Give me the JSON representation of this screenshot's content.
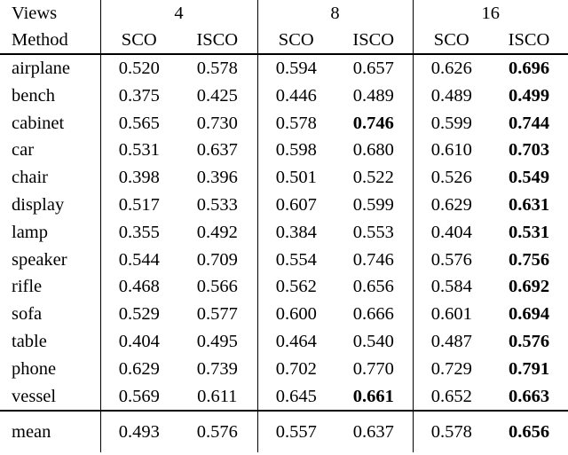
{
  "table": {
    "header": {
      "views_label": "Views",
      "method_label": "Method",
      "groups": [
        "4",
        "8",
        "16"
      ],
      "sub_labels": [
        "SCO",
        "ISCO",
        "SCO",
        "ISCO",
        "SCO",
        "ISCO"
      ]
    },
    "rows": [
      {
        "method": "airplane",
        "values": [
          "0.520",
          "0.578",
          "0.594",
          "0.657",
          "0.626",
          "0.696"
        ],
        "bold": [
          0,
          0,
          0,
          0,
          0,
          1
        ]
      },
      {
        "method": "bench",
        "values": [
          "0.375",
          "0.425",
          "0.446",
          "0.489",
          "0.489",
          "0.499"
        ],
        "bold": [
          0,
          0,
          0,
          0,
          0,
          1
        ]
      },
      {
        "method": "cabinet",
        "values": [
          "0.565",
          "0.730",
          "0.578",
          "0.746",
          "0.599",
          "0.744"
        ],
        "bold": [
          0,
          0,
          0,
          1,
          0,
          1
        ]
      },
      {
        "method": "car",
        "values": [
          "0.531",
          "0.637",
          "0.598",
          "0.680",
          "0.610",
          "0.703"
        ],
        "bold": [
          0,
          0,
          0,
          0,
          0,
          1
        ]
      },
      {
        "method": "chair",
        "values": [
          "0.398",
          "0.396",
          "0.501",
          "0.522",
          "0.526",
          "0.549"
        ],
        "bold": [
          0,
          0,
          0,
          0,
          0,
          1
        ]
      },
      {
        "method": "display",
        "values": [
          "0.517",
          "0.533",
          "0.607",
          "0.599",
          "0.629",
          "0.631"
        ],
        "bold": [
          0,
          0,
          0,
          0,
          0,
          1
        ]
      },
      {
        "method": "lamp",
        "values": [
          "0.355",
          "0.492",
          "0.384",
          "0.553",
          "0.404",
          "0.531"
        ],
        "bold": [
          0,
          0,
          0,
          0,
          0,
          1
        ]
      },
      {
        "method": "speaker",
        "values": [
          "0.544",
          "0.709",
          "0.554",
          "0.746",
          "0.576",
          "0.756"
        ],
        "bold": [
          0,
          0,
          0,
          0,
          0,
          1
        ]
      },
      {
        "method": "rifle",
        "values": [
          "0.468",
          "0.566",
          "0.562",
          "0.656",
          "0.584",
          "0.692"
        ],
        "bold": [
          0,
          0,
          0,
          0,
          0,
          1
        ]
      },
      {
        "method": "sofa",
        "values": [
          "0.529",
          "0.577",
          "0.600",
          "0.666",
          "0.601",
          "0.694"
        ],
        "bold": [
          0,
          0,
          0,
          0,
          0,
          1
        ]
      },
      {
        "method": "table",
        "values": [
          "0.404",
          "0.495",
          "0.464",
          "0.540",
          "0.487",
          "0.576"
        ],
        "bold": [
          0,
          0,
          0,
          0,
          0,
          1
        ]
      },
      {
        "method": "phone",
        "values": [
          "0.629",
          "0.739",
          "0.702",
          "0.770",
          "0.729",
          "0.791"
        ],
        "bold": [
          0,
          0,
          0,
          0,
          0,
          1
        ]
      },
      {
        "method": "vessel",
        "values": [
          "0.569",
          "0.611",
          "0.645",
          "0.661",
          "0.652",
          "0.663"
        ],
        "bold": [
          0,
          0,
          0,
          1,
          0,
          1
        ]
      }
    ],
    "mean_row": {
      "method": "mean",
      "values": [
        "0.493",
        "0.576",
        "0.557",
        "0.637",
        "0.578",
        "0.656"
      ],
      "bold": [
        0,
        0,
        0,
        0,
        0,
        1
      ]
    }
  }
}
